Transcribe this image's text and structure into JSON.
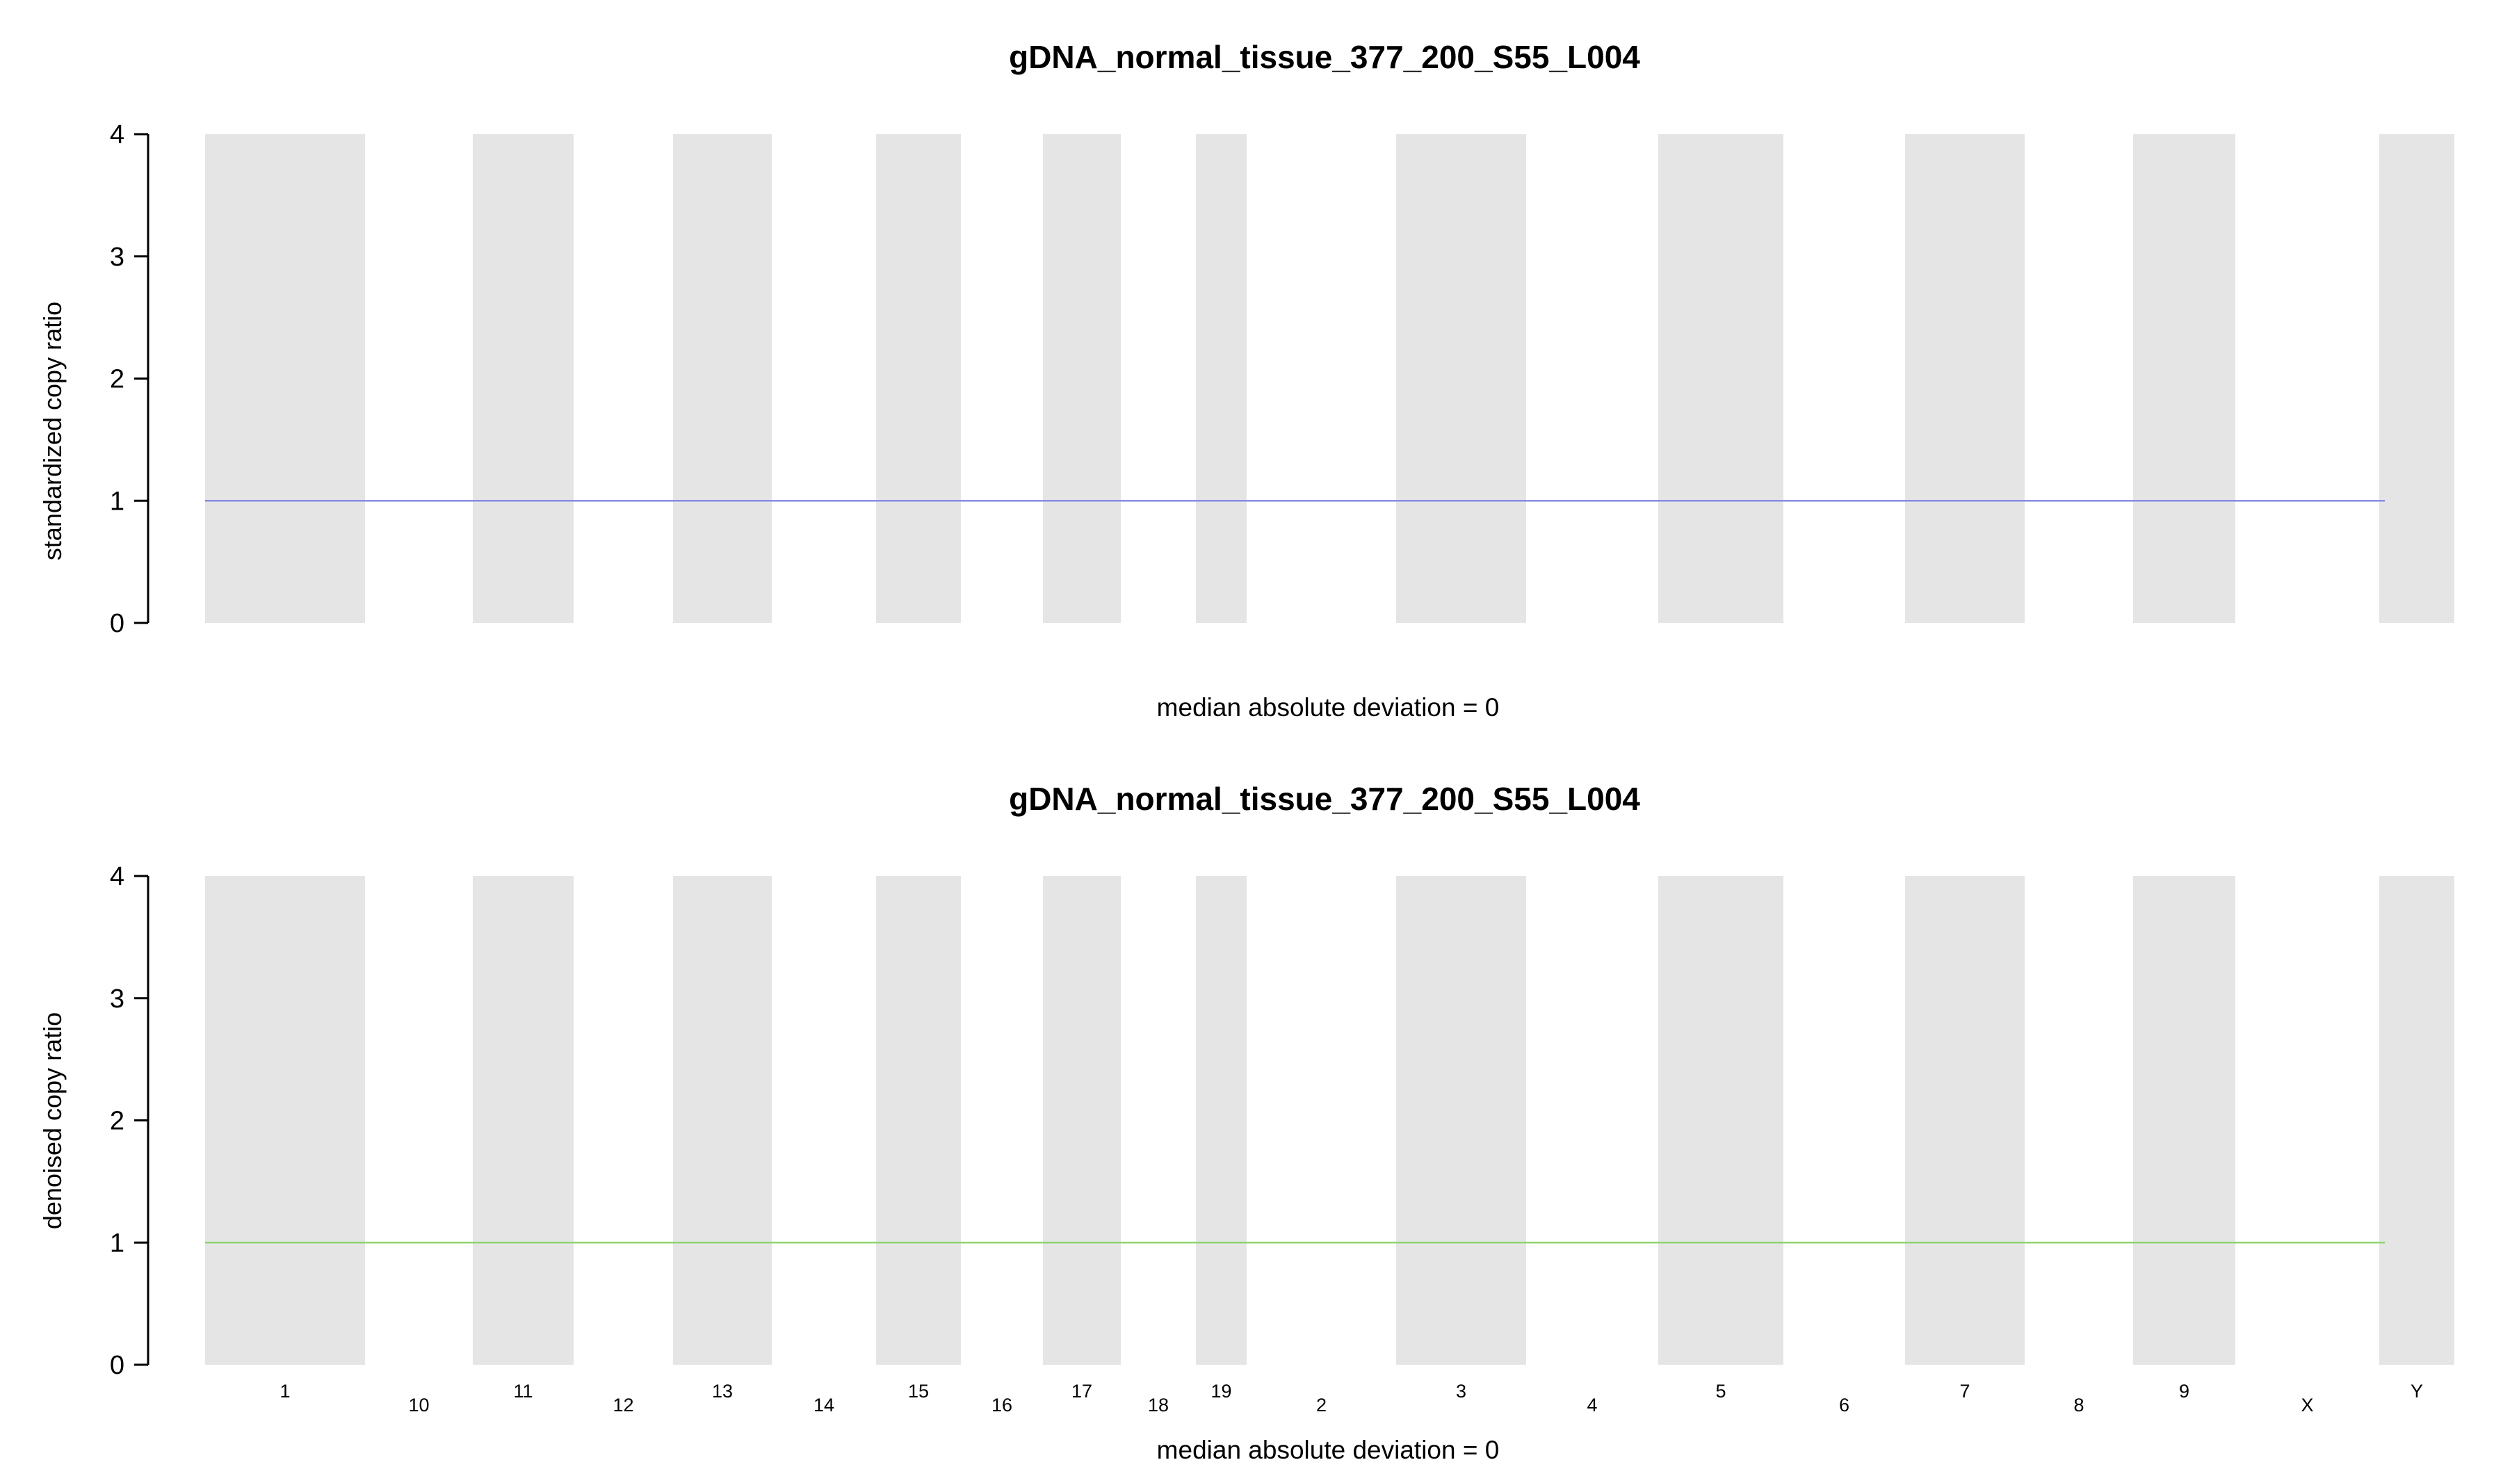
{
  "chart_data": [
    {
      "type": "scatter",
      "title": "gDNA_normal_tissue_377_200_S55_L004",
      "ylabel": "standardized copy ratio",
      "xlabel": "",
      "caption": "median absolute deviation = 0",
      "ylim": [
        0,
        4
      ],
      "yticks": [
        0,
        1,
        2,
        3,
        4
      ],
      "series_color": "#8a8ae6",
      "show_contig_labels": false,
      "series": [
        {
          "values": [
            1,
            1,
            1,
            1,
            1,
            1,
            1,
            1,
            1,
            1,
            1,
            1,
            1,
            1,
            1,
            1,
            1,
            1,
            1,
            1,
            1
          ]
        }
      ]
    },
    {
      "type": "scatter",
      "title": "gDNA_normal_tissue_377_200_S55_L004",
      "ylabel": "denoised copy ratio",
      "xlabel": "",
      "caption": "median absolute deviation = 0",
      "ylim": [
        0,
        4
      ],
      "yticks": [
        0,
        1,
        2,
        3,
        4
      ],
      "series_color": "#8fd46e",
      "show_contig_labels": true,
      "series": [
        {
          "values": [
            1,
            1,
            1,
            1,
            1,
            1,
            1,
            1,
            1,
            1,
            1,
            1,
            1,
            1,
            1,
            1,
            1,
            1,
            1,
            1,
            1
          ]
        }
      ]
    }
  ],
  "contigs": [
    "1",
    "10",
    "11",
    "12",
    "13",
    "14",
    "15",
    "16",
    "17",
    "18",
    "19",
    "2",
    "3",
    "4",
    "5",
    "6",
    "7",
    "8",
    "9",
    "X",
    "Y"
  ],
  "contig_band_color": "#e5e5e5"
}
